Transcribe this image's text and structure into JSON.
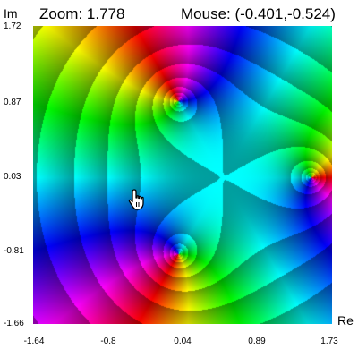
{
  "hud": {
    "zoom_label": "Zoom: 1.778",
    "mouse_label": "Mouse: (-0.401,-0.524)"
  },
  "axes": {
    "y_name": "Im",
    "x_name": "Re",
    "y_ticks": [
      "1.72",
      "0.87",
      "0.03",
      "-0.81",
      "-1.66"
    ],
    "x_ticks": [
      "-1.64",
      "-0.8",
      "0.04",
      "0.89",
      "1.73"
    ]
  },
  "plot": {
    "view": {
      "re_min": -1.64,
      "re_max": 1.73,
      "im_min": -1.66,
      "im_max": 1.72
    },
    "zeros": [
      {
        "re": 0.0,
        "im": 0.866
      },
      {
        "re": 0.0,
        "im": -0.866
      },
      {
        "re": 1.5,
        "im": 0.0
      }
    ],
    "ring_count": 12
  },
  "cursor": {
    "icon": "hand-pointer-icon"
  }
}
